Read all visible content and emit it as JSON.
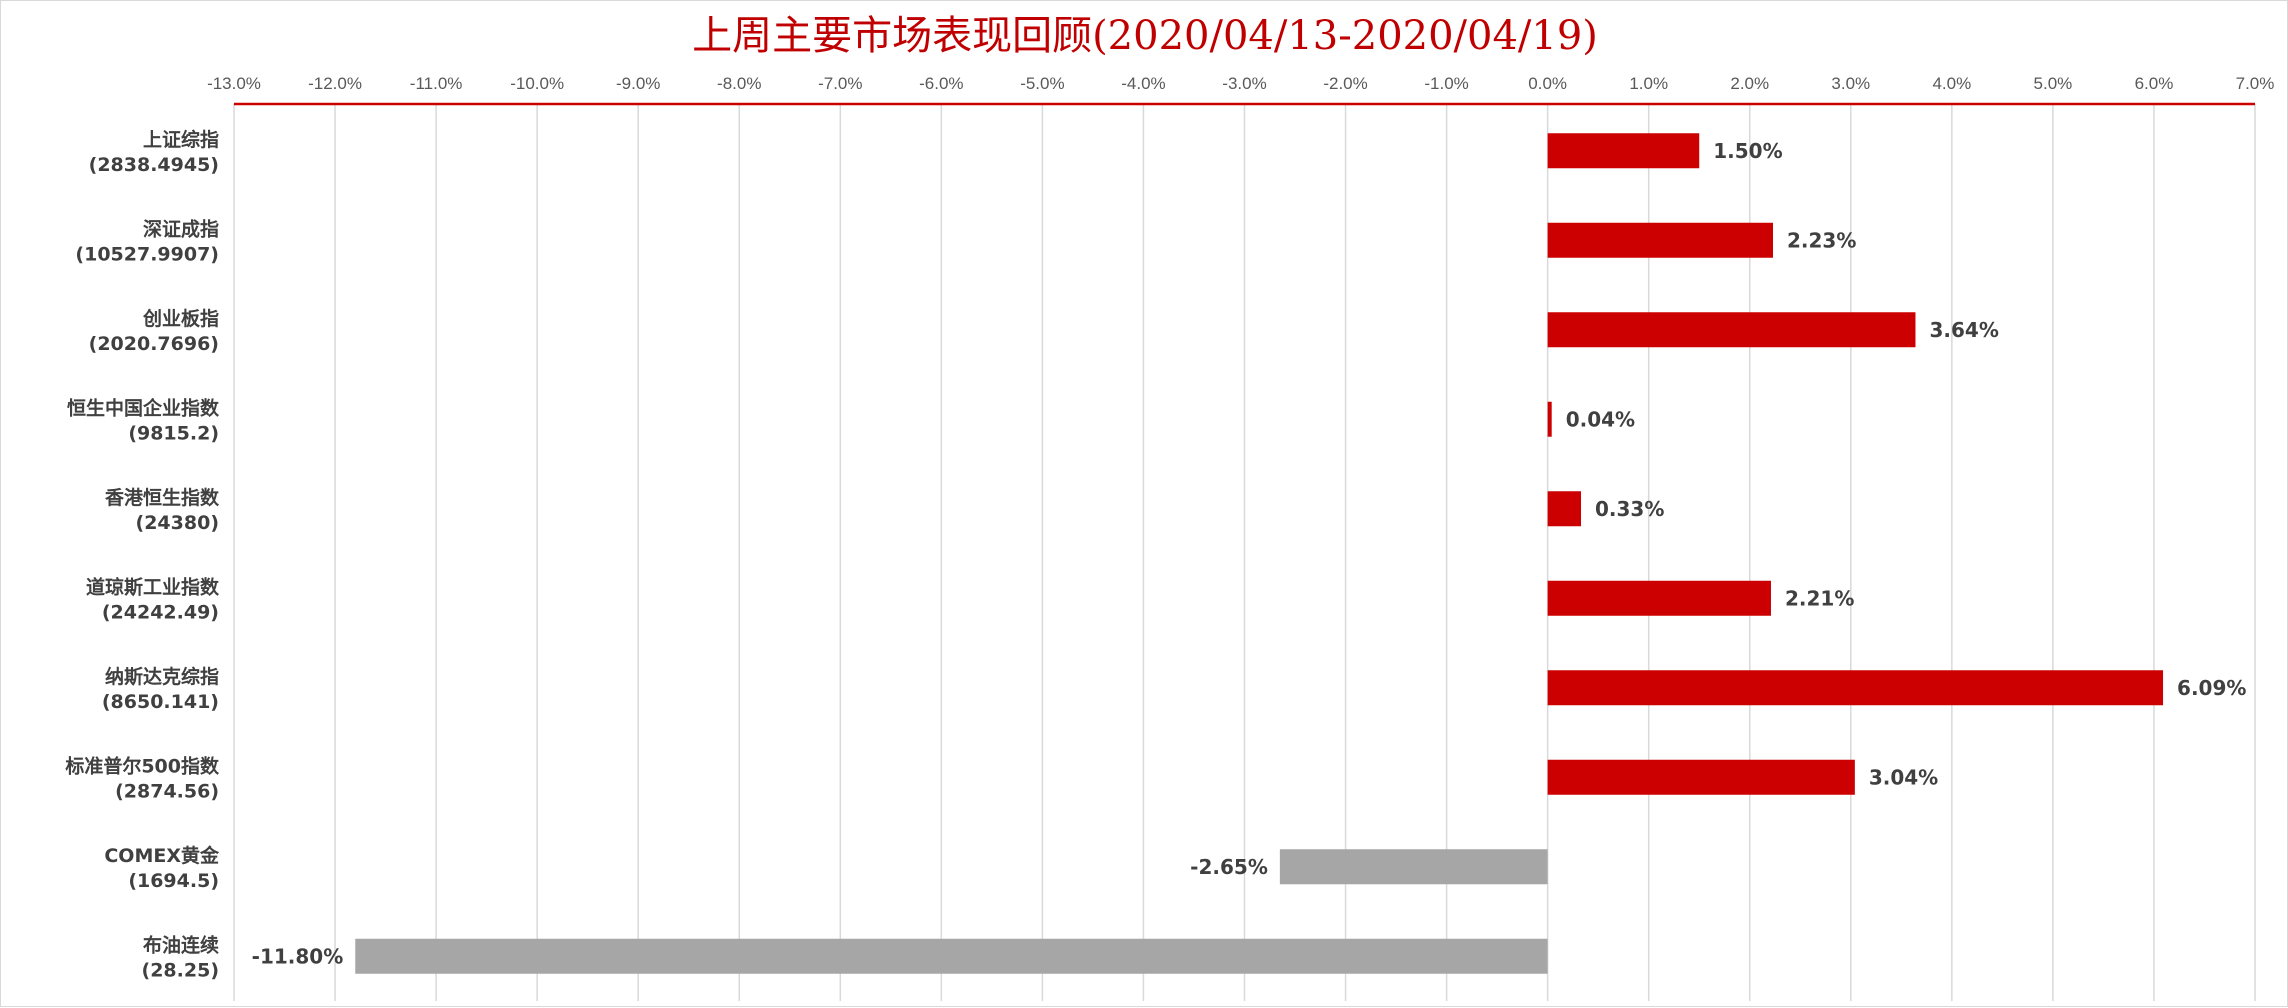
{
  "chart_data": {
    "type": "bar",
    "orientation": "horizontal",
    "title": "上周主要市场表现回顾(2020/04/13-2020/04/19)",
    "xlabel": "",
    "ylabel": "",
    "xlim": [
      -13.0,
      7.0
    ],
    "x_ticks": [
      -13.0,
      -12.0,
      -11.0,
      -10.0,
      -9.0,
      -8.0,
      -7.0,
      -6.0,
      -5.0,
      -4.0,
      -3.0,
      -2.0,
      -1.0,
      0.0,
      1.0,
      2.0,
      3.0,
      4.0,
      5.0,
      6.0,
      7.0
    ],
    "tick_labels": [
      "-13.0%",
      "-12.0%",
      "-11.0%",
      "-10.0%",
      "-9.0%",
      "-8.0%",
      "-7.0%",
      "-6.0%",
      "-5.0%",
      "-4.0%",
      "-3.0%",
      "-2.0%",
      "-1.0%",
      "0.0%",
      "1.0%",
      "2.0%",
      "3.0%",
      "4.0%",
      "5.0%",
      "6.0%",
      "7.0%"
    ],
    "x_axis_position": "top",
    "grid": "vertical",
    "categories": [
      {
        "name": "上证综指",
        "sub": "(2838.4945)"
      },
      {
        "name": "深证成指",
        "sub": "(10527.9907)"
      },
      {
        "name": "创业板指",
        "sub": "(2020.7696)"
      },
      {
        "name": "恒生中国企业指数",
        "sub": "(9815.2)"
      },
      {
        "name": "香港恒生指数",
        "sub": "(24380)"
      },
      {
        "name": "道琼斯工业指数",
        "sub": "(24242.49)"
      },
      {
        "name": "纳斯达克综指",
        "sub": "(8650.141)"
      },
      {
        "name": "标准普尔500指数",
        "sub": "(2874.56)"
      },
      {
        "name": "COMEX黄金",
        "sub": "(1694.5)"
      },
      {
        "name": "布油连续",
        "sub": "(28.25)"
      }
    ],
    "values": [
      1.5,
      2.23,
      3.64,
      0.04,
      0.33,
      2.21,
      6.09,
      3.04,
      -2.65,
      -11.8
    ],
    "data_labels": [
      "1.50%",
      "2.23%",
      "3.64%",
      "0.04%",
      "0.33%",
      "2.21%",
      "6.09%",
      "3.04%",
      "-2.65%",
      "-11.80%"
    ],
    "colors": {
      "positive": "#cc0000",
      "negative": "#a6a6a6",
      "title": "#c00000",
      "axis_line": "#cc0000",
      "grid": "#d9d9d9"
    }
  }
}
